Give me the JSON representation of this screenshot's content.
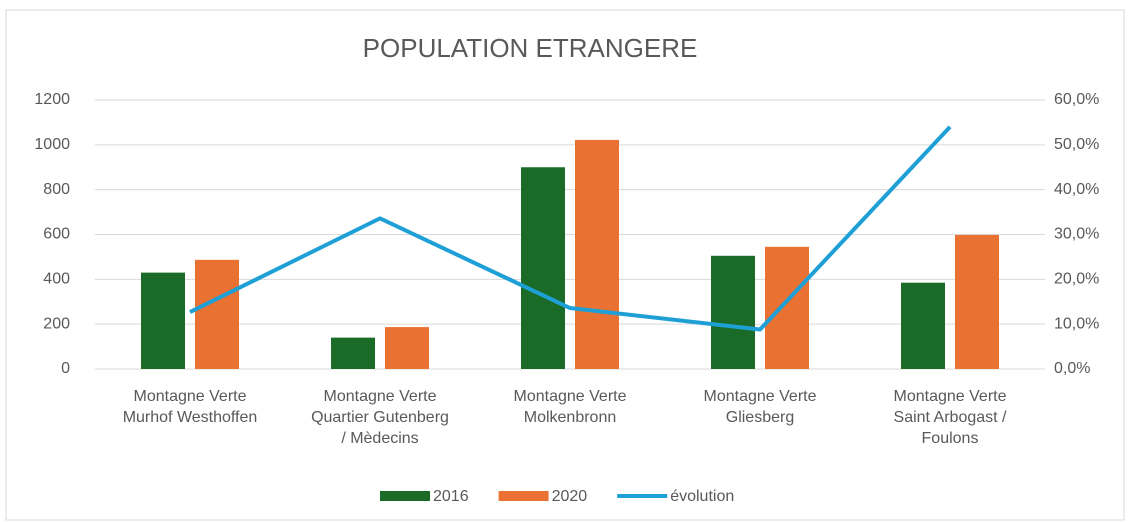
{
  "chart_data": {
    "type": "bar_line",
    "title": "POPULATION ETRANGERE",
    "categories": [
      "Montagne Verte\nMurhof Westhoffen",
      "Montagne Verte\nQuartier Gutenberg\n/ Mèdecins",
      "Montagne Verte\nMolkenbronn",
      "Montagne Verte\nGliesberg",
      "Montagne Verte\nSaint Arbogast /\nFoulons"
    ],
    "series": [
      {
        "name": "2016",
        "type": "bar",
        "color": "#1a6b27",
        "values": [
          430,
          140,
          900,
          505,
          385
        ]
      },
      {
        "name": "2020",
        "type": "bar",
        "color": "#e97132",
        "values": [
          487,
          187,
          1022,
          545,
          598
        ]
      },
      {
        "name": "évolution",
        "type": "line",
        "axis": "y2",
        "color": "#1ea0d6",
        "values": [
          12.7,
          33.6,
          13.6,
          8.8,
          54.0
        ]
      }
    ],
    "ylim": [
      0,
      1200
    ],
    "yticks": [
      0,
      200,
      400,
      600,
      800,
      1000,
      1200
    ],
    "y2lim": [
      0,
      60
    ],
    "y2ticks": [
      {
        "value": 0,
        "label": "0,0%"
      },
      {
        "value": 10,
        "label": "10,0%"
      },
      {
        "value": 20,
        "label": "20,0%"
      },
      {
        "value": 30,
        "label": "30,0%"
      },
      {
        "value": 40,
        "label": "40,0%"
      },
      {
        "value": 50,
        "label": "50,0%"
      },
      {
        "value": 60,
        "label": "60,0%"
      }
    ],
    "grid": true,
    "legend": "bottom"
  }
}
